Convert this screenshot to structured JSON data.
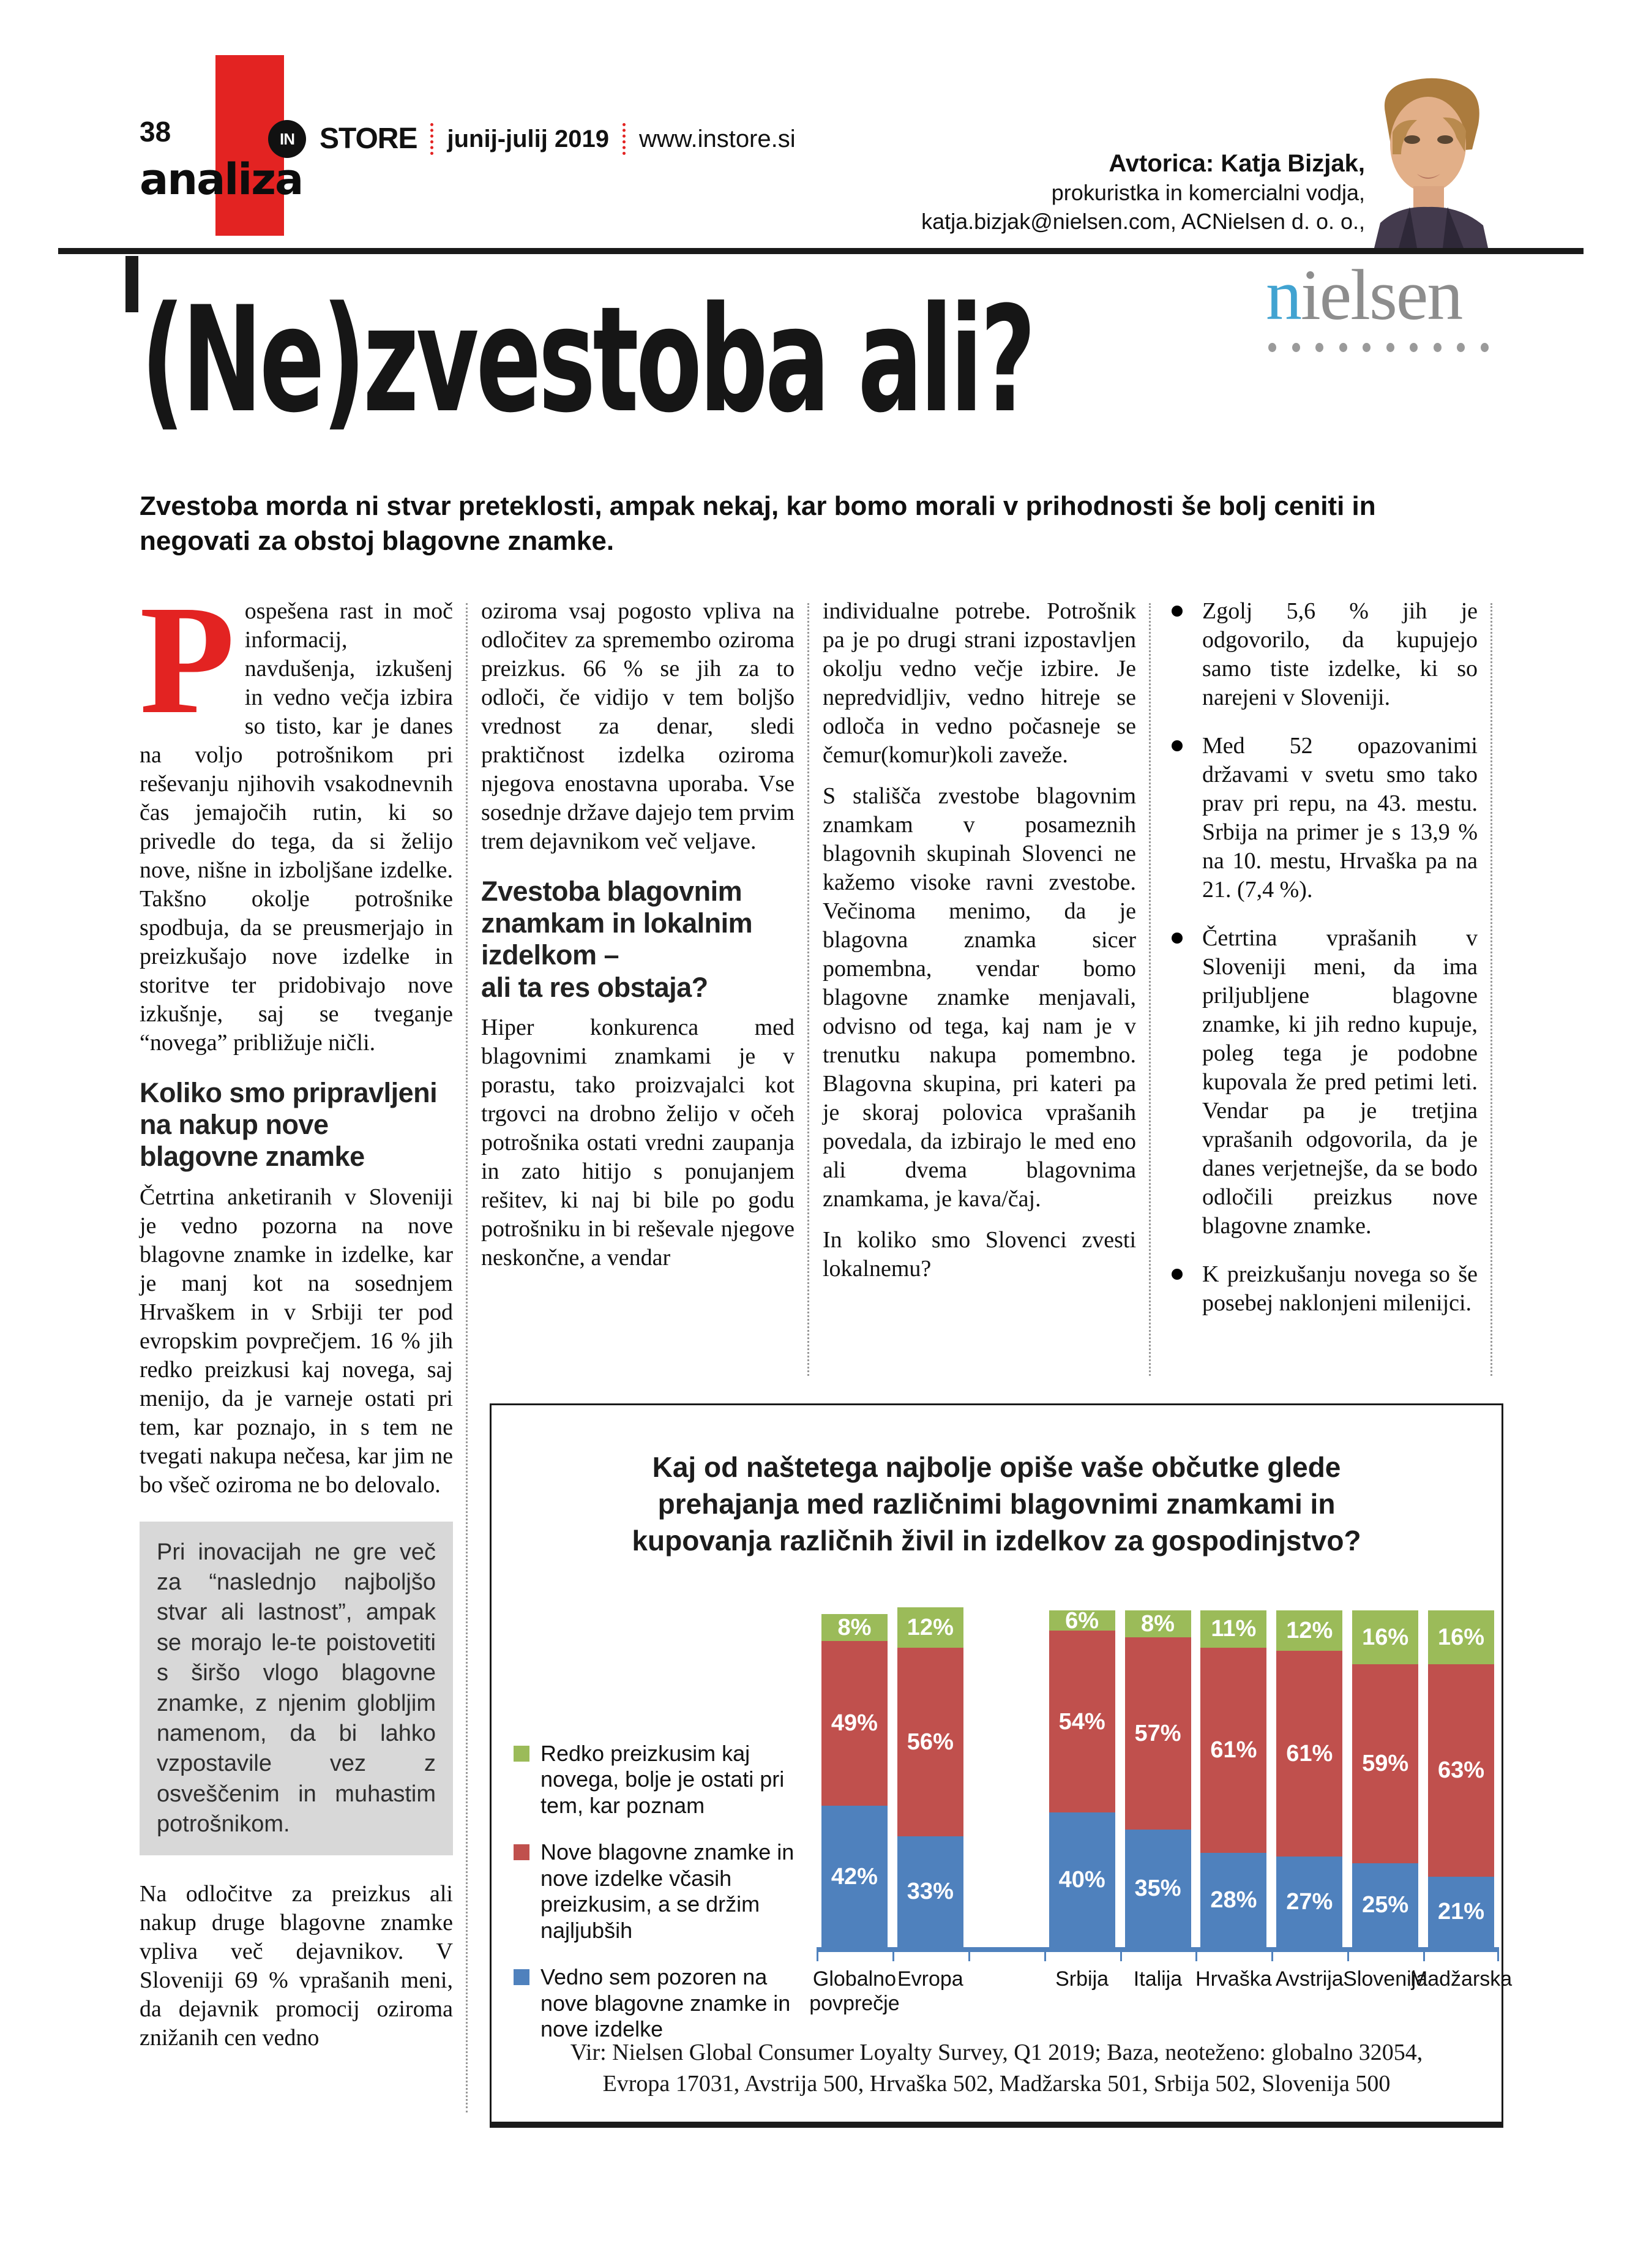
{
  "header": {
    "page_number": "38",
    "brand_in": "IN",
    "brand_store": "STORE",
    "issue": "junij-julij 2019",
    "website": "www.instore.si",
    "section": "analiza"
  },
  "author": {
    "name_line": "Avtorica: Katja Bizjak,",
    "role_line": "prokuristka in komercialni vodja,",
    "contact_line": "katja.bizjak@nielsen.com, ACNielsen d. o. o.,"
  },
  "brand_logo": {
    "name_first_letter": "n",
    "name_rest": "ielsen"
  },
  "article": {
    "title": "(Ne)zvestoba ali?",
    "lead": "Zvestoba morda ni stvar preteklosti, ampak nekaj, kar bomo morali v prihodnosti še bolj ceniti in negovati za obstoj blagovne znamke.",
    "col1": {
      "dropcap": "P",
      "p1": "ospešena rast in moč informacij, navdušenja, izkušenj in vedno večja izbira so tisto, kar je danes na voljo potrošnikom pri reševanju njihovih vsakodnevnih čas jemajočih rutin, ki so privedle do tega, da si želijo nove, nišne in izboljšane izdelke. Takšno okolje potrošnike spodbuja, da se preusmerjajo in preizkušajo nove izdelke in storitve ter pridobivajo nove izkušnje, saj se tveganje “novega” približuje ničli.",
      "h1": "Koliko smo pripravljeni na nakup nove blagovne znamke",
      "p2": "Četrtina anketiranih v Sloveniji je vedno pozorna na nove blagovne znamke in izdelke, kar je manj kot na sosednjem Hrvaškem in v Srbiji ter pod evropskim povprečjem. 16 % jih redko preizkusi kaj novega, saj menijo, da je varneje ostati pri tem, kar poznajo, in s tem ne tvegati nakupa nečesa, kar jim ne bo všeč oziroma ne bo delovalo.",
      "box": "Pri inovacijah ne gre več za “naslednjo najboljšo stvar ali lastnost”, ampak se morajo le-te poistovetiti s širšo vlogo blagovne znamke, z njenim globljim namenom, da bi lahko vzpostavile vez z osveščenim in muhastim potrošnikom.",
      "p3": "Na odločitve za preizkus ali nakup druge blagovne znamke vpliva več dejavnikov. V Sloveniji 69 % vprašanih meni, da dejavnik promocij oziroma znižanih cen vedno"
    },
    "col2": {
      "p1": "oziroma vsaj pogosto vpliva na odločitev za spremembo oziroma preizkus. 66 % se jih za to odloči, če vidijo v tem boljšo vrednost za denar, sledi praktičnost izdelka oziroma njegova enostavna uporaba. Vse sosednje države dajejo tem prvim trem dejavnikom več veljave.",
      "h1_line1": "Zvestoba blagovnim znamkam in lokalnim izdelkom –",
      "h1_line2": "ali ta res obstaja?",
      "p2": "Hiper konkurenca med blagovnimi znamkami je v porastu, tako proizvajalci kot trgovci na drobno želijo v očeh potrošnika ostati vredni zaupanja in zato hitijo s ponujanjem rešitev, ki naj bi bile po godu potrošniku in bi reševale njegove neskončne, a vendar"
    },
    "col3": {
      "p1": "individualne potrebe. Potrošnik pa je po drugi strani izpostavljen okolju vedno večje izbire. Je nepredvidljiv, vedno hitreje se odloča in vedno počasneje se čemur(komur)koli zaveže.",
      "p2": "S stališča zvestobe blagovnim znamkam v posameznih blagovnih skupinah Slovenci ne kažemo visoke ravni zvestobe. Večinoma menimo, da je blagovna znamka sicer pomembna, vendar bomo blagovne znamke menjavali, odvisno od tega, kaj nam je v trenutku nakupa pomembno. Blagovna skupina, pri kateri pa je skoraj polovica vprašanih povedala, da izbirajo le med eno ali dvema blagovnima znamkama, je kava/čaj.",
      "p3": "In koliko smo Slovenci zvesti lokalnemu?"
    },
    "col4": {
      "bullets": [
        "Zgolj 5,6 % jih je odgovorilo, da kupujejo samo tiste izdelke, ki so narejeni v Sloveniji.",
        "Med 52 opazovanimi državami v svetu smo tako prav pri repu, na 43. mestu. Srbija na primer je s 13,9 % na 10. mestu, Hrvaška pa na 21. (7,4 %).",
        "Četrtina vprašanih v Sloveniji meni, da ima priljubljene blagovne znamke, ki jih redno kupuje, poleg tega je podobne kupovala že pred petimi leti. Vendar pa je tretjina vprašanih odgovorila, da je danes verjetnejše, da se bodo odločili preizkus nove blagovne znamke.",
        "K preizkušanju novega so še posebej naklonjeni milenijci."
      ]
    }
  },
  "chart_data": {
    "type": "bar",
    "stacked": true,
    "title": "Kaj od naštetega najbolje opiše vaše občutke glede prehajanja med različnimi blagovnimi znamkami in kupovanja različnih živil in izdelkov za gospodinjstvo?",
    "categories": [
      "Globalno povprečje",
      "Evropa",
      "Srbija",
      "Italija",
      "Hrvaška",
      "Avstrija",
      "Slovenija",
      "Madžarska"
    ],
    "gap_after_category_index": 1,
    "value_suffix": "%",
    "ylim": [
      0,
      100
    ],
    "legend_position": "left",
    "axis_color": "#4f81bd",
    "series": [
      {
        "name": "Redko preizkusim kaj novega, bolje je ostati pri tem, kar poznam",
        "color": "#9bbb59",
        "values": [
          8,
          12,
          6,
          8,
          11,
          12,
          16,
          16
        ]
      },
      {
        "name": "Nove blagovne znamke in nove izdelke včasih preizkusim, a se držim najljubših",
        "color": "#c0504d",
        "values": [
          49,
          56,
          54,
          57,
          61,
          61,
          59,
          63
        ]
      },
      {
        "name": "Vedno sem pozoren na nove blagovne znamke in nove izdelke",
        "color": "#4f81bd",
        "values": [
          42,
          33,
          40,
          35,
          28,
          27,
          25,
          21
        ]
      }
    ],
    "source": "Vir: Nielsen Global Consumer Loyalty Survey, Q1 2019; Baza, neoteženo: globalno 32054, Evropa 17031, Avstrija 500, Hrvaška 502, Madžarska 501, Srbija 502, Slovenija 500"
  }
}
